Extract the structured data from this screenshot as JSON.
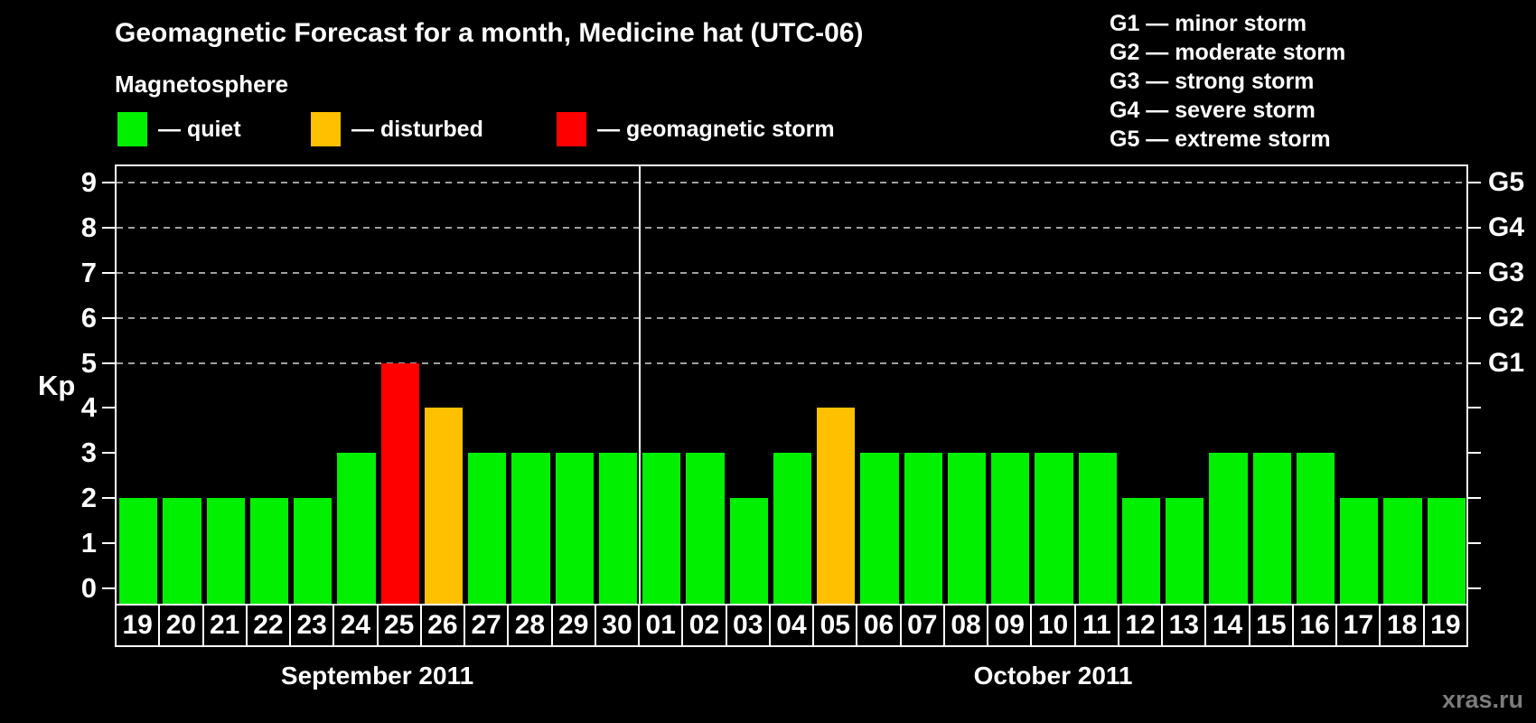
{
  "title": "Geomagnetic Forecast for a month, Medicine hat (UTC-06)",
  "legend": {
    "heading": "Magnetosphere",
    "items": [
      {
        "label": "— quiet",
        "status": "quiet",
        "color": "#00f000"
      },
      {
        "label": "— disturbed",
        "status": "disturbed",
        "color": "#ffc000"
      },
      {
        "label": "— geomagnetic storm",
        "status": "storm",
        "color": "#ff0000"
      }
    ]
  },
  "storm_scale": [
    "G1 — minor storm",
    "G2 — moderate storm",
    "G3 — strong storm",
    "G4 — severe storm",
    "G5 — extreme storm"
  ],
  "axes": {
    "y_label": "Kp",
    "y_ticks": [
      0,
      1,
      2,
      3,
      4,
      5,
      6,
      7,
      8,
      9
    ],
    "g_levels": [
      {
        "kp": 5,
        "label": "G1"
      },
      {
        "kp": 6,
        "label": "G2"
      },
      {
        "kp": 7,
        "label": "G3"
      },
      {
        "kp": 8,
        "label": "G4"
      },
      {
        "kp": 9,
        "label": "G5"
      }
    ]
  },
  "watermark": "xras.ru",
  "chart_data": {
    "type": "bar",
    "title": "Geomagnetic Forecast for a month, Medicine hat (UTC-06)",
    "ylabel": "Kp",
    "ylim": [
      0,
      9
    ],
    "grid": "horizontal dashed lines at Kp 5-9 (G1-G5)",
    "legend_position": "top",
    "months": [
      "September 2011",
      "October 2011"
    ],
    "status_colors": {
      "quiet": "#00f000",
      "disturbed": "#ffc000",
      "storm": "#ff0000"
    },
    "bars": [
      {
        "day": "19",
        "month": 0,
        "kp": 2,
        "status": "quiet"
      },
      {
        "day": "20",
        "month": 0,
        "kp": 2,
        "status": "quiet"
      },
      {
        "day": "21",
        "month": 0,
        "kp": 2,
        "status": "quiet"
      },
      {
        "day": "22",
        "month": 0,
        "kp": 2,
        "status": "quiet"
      },
      {
        "day": "23",
        "month": 0,
        "kp": 2,
        "status": "quiet"
      },
      {
        "day": "24",
        "month": 0,
        "kp": 3,
        "status": "quiet"
      },
      {
        "day": "25",
        "month": 0,
        "kp": 5,
        "status": "storm"
      },
      {
        "day": "26",
        "month": 0,
        "kp": 4,
        "status": "disturbed"
      },
      {
        "day": "27",
        "month": 0,
        "kp": 3,
        "status": "quiet"
      },
      {
        "day": "28",
        "month": 0,
        "kp": 3,
        "status": "quiet"
      },
      {
        "day": "29",
        "month": 0,
        "kp": 3,
        "status": "quiet"
      },
      {
        "day": "30",
        "month": 0,
        "kp": 3,
        "status": "quiet"
      },
      {
        "day": "01",
        "month": 1,
        "kp": 3,
        "status": "quiet"
      },
      {
        "day": "02",
        "month": 1,
        "kp": 3,
        "status": "quiet"
      },
      {
        "day": "03",
        "month": 1,
        "kp": 2,
        "status": "quiet"
      },
      {
        "day": "04",
        "month": 1,
        "kp": 3,
        "status": "quiet"
      },
      {
        "day": "05",
        "month": 1,
        "kp": 4,
        "status": "disturbed"
      },
      {
        "day": "06",
        "month": 1,
        "kp": 3,
        "status": "quiet"
      },
      {
        "day": "07",
        "month": 1,
        "kp": 3,
        "status": "quiet"
      },
      {
        "day": "08",
        "month": 1,
        "kp": 3,
        "status": "quiet"
      },
      {
        "day": "09",
        "month": 1,
        "kp": 3,
        "status": "quiet"
      },
      {
        "day": "10",
        "month": 1,
        "kp": 3,
        "status": "quiet"
      },
      {
        "day": "11",
        "month": 1,
        "kp": 3,
        "status": "quiet"
      },
      {
        "day": "12",
        "month": 1,
        "kp": 2,
        "status": "quiet"
      },
      {
        "day": "13",
        "month": 1,
        "kp": 2,
        "status": "quiet"
      },
      {
        "day": "14",
        "month": 1,
        "kp": 3,
        "status": "quiet"
      },
      {
        "day": "15",
        "month": 1,
        "kp": 3,
        "status": "quiet"
      },
      {
        "day": "16",
        "month": 1,
        "kp": 3,
        "status": "quiet"
      },
      {
        "day": "17",
        "month": 1,
        "kp": 2,
        "status": "quiet"
      },
      {
        "day": "18",
        "month": 1,
        "kp": 2,
        "status": "quiet"
      },
      {
        "day": "19",
        "month": 1,
        "kp": 2,
        "status": "quiet"
      }
    ]
  }
}
